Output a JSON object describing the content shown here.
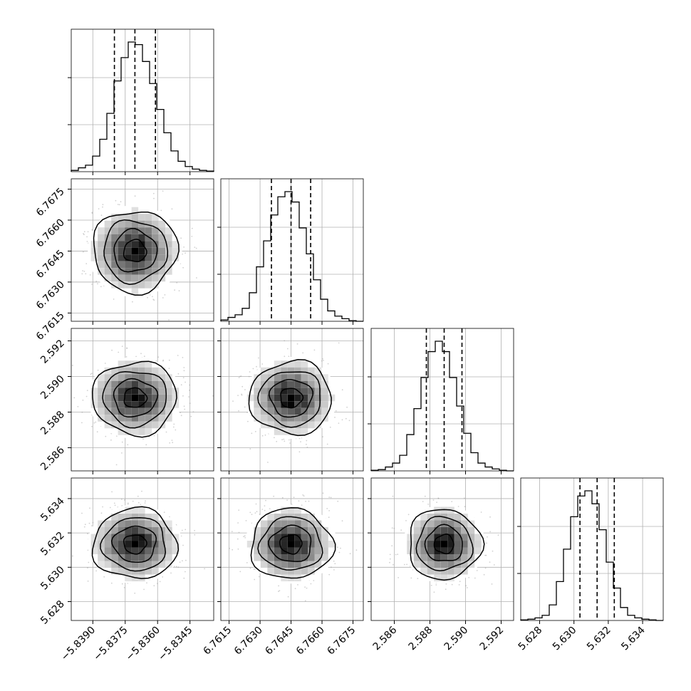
{
  "chart_data": {
    "type": "corner",
    "grid": true,
    "dimensions": [
      {
        "ticks": [
          -5.839,
          -5.8375,
          -5.836,
          -5.8345
        ],
        "tick_labels": [
          "−5.8390",
          "−5.8375",
          "−5.8360",
          "−5.8345"
        ],
        "range": [
          -5.84,
          -5.8334
        ]
      },
      {
        "ticks": [
          6.7615,
          6.763,
          6.7645,
          6.766,
          6.7675
        ],
        "tick_labels": [
          "6.7615",
          "6.7630",
          "6.7645",
          "6.7660",
          "6.7675"
        ],
        "range": [
          6.7611,
          6.768
        ]
      },
      {
        "ticks": [
          2.586,
          2.588,
          2.59,
          2.592
        ],
        "tick_labels": [
          "2.586",
          "2.588",
          "2.590",
          "2.592"
        ],
        "range": [
          2.5847,
          2.5927
        ]
      },
      {
        "ticks": [
          5.628,
          5.63,
          5.632,
          5.634
        ],
        "tick_labels": [
          "5.628",
          "5.630",
          "5.632",
          "5.634"
        ],
        "range": [
          5.6269,
          5.6352
        ]
      }
    ],
    "histograms": [
      {
        "dim": 0,
        "bin_edges_range": [
          -5.84,
          -5.8334
        ],
        "counts": [
          1,
          3,
          5,
          12,
          25,
          45,
          70,
          88,
          100,
          98,
          85,
          68,
          48,
          30,
          16,
          8,
          4,
          2,
          1,
          0.5
        ],
        "quantiles": [
          -5.838,
          -5.83705,
          -5.8361
        ]
      },
      {
        "dim": 1,
        "bin_edges_range": [
          6.7611,
          6.768
        ],
        "counts": [
          1,
          3,
          5,
          10,
          22,
          42,
          62,
          82,
          96,
          100,
          92,
          72,
          52,
          32,
          17,
          8,
          4,
          2,
          0.5,
          0
        ],
        "quantiles": [
          6.76355,
          6.7645,
          6.76545
        ]
      },
      {
        "dim": 2,
        "bin_edges_range": [
          2.5847,
          2.5927
        ],
        "counts": [
          0.5,
          1,
          3,
          6,
          12,
          28,
          48,
          72,
          92,
          100,
          92,
          72,
          50,
          29,
          14,
          6,
          3,
          1.5,
          0.5,
          0
        ],
        "quantiles": [
          2.5878,
          2.5888,
          2.5898
        ]
      },
      {
        "dim": 3,
        "bin_edges_range": [
          5.6269,
          5.6352
        ],
        "counts": [
          0.5,
          1,
          2,
          4,
          12,
          30,
          55,
          80,
          96,
          100,
          90,
          70,
          45,
          25,
          10,
          4,
          2,
          1,
          0.5,
          0
        ],
        "quantiles": [
          5.63035,
          5.63135,
          5.63235
        ]
      }
    ],
    "pairs": [
      {
        "x_dim": 0,
        "y_dim": 1,
        "center": [
          -5.83705,
          6.7645
        ],
        "sigma": [
          0.00095,
          0.00097
        ]
      },
      {
        "x_dim": 0,
        "y_dim": 2,
        "center": [
          -5.83705,
          2.5888
        ],
        "sigma": [
          0.00095,
          0.001
        ]
      },
      {
        "x_dim": 1,
        "y_dim": 2,
        "center": [
          6.7645,
          2.5888
        ],
        "sigma": [
          0.00097,
          0.001
        ]
      },
      {
        "x_dim": 0,
        "y_dim": 3,
        "center": [
          -5.83705,
          5.63135
        ],
        "sigma": [
          0.00095,
          0.001
        ]
      },
      {
        "x_dim": 1,
        "y_dim": 3,
        "center": [
          6.7645,
          5.63135
        ],
        "sigma": [
          0.00097,
          0.001
        ]
      },
      {
        "x_dim": 2,
        "y_dim": 3,
        "center": [
          2.5888,
          5.63135
        ],
        "sigma": [
          0.001,
          0.001
        ]
      }
    ]
  }
}
